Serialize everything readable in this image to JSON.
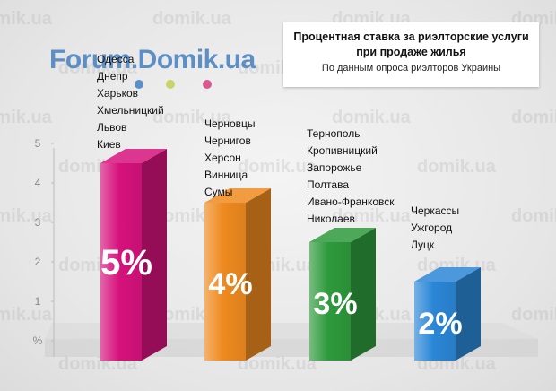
{
  "watermark": "domik.ua",
  "brand": "Forum.Domik.ua",
  "title": {
    "main": "Процентная ставка за риэлторские услуги при продаже жилья",
    "sub": "По данным опроса риэлторов Украины"
  },
  "colors": {
    "magenta": "#d6127c",
    "orange": "#ee8a1f",
    "green": "#2e9a3c",
    "blue": "#2b87d6",
    "dot1": "#5b8fc6",
    "dot2": "#c9d36a",
    "dot3": "#d8588f"
  },
  "chart_data": {
    "type": "bar",
    "ylim": [
      0,
      5
    ],
    "yticks": [
      "%",
      "1",
      "2",
      "3",
      "4",
      "5"
    ],
    "categories": [
      [
        "Одесса",
        "Днепр",
        "Харьков",
        "Хмельницкий",
        "Львов",
        "Киев"
      ],
      [
        "Черновцы",
        "Чернигов",
        "Херсон",
        "Винница",
        "Сумы"
      ],
      [
        "Тернополь",
        "Кропивницкий",
        "Запорожье",
        "Полтава",
        "Ивано-Франковск",
        "Николаев"
      ],
      [
        "Черкассы",
        "Ужгород",
        "Луцк"
      ]
    ],
    "values": [
      5,
      4,
      3,
      2
    ],
    "value_labels": [
      "5%",
      "4%",
      "3%",
      "2%"
    ],
    "bar_colors": [
      "#d6127c",
      "#ee8a1f",
      "#2e9a3c",
      "#2b87d6"
    ]
  }
}
